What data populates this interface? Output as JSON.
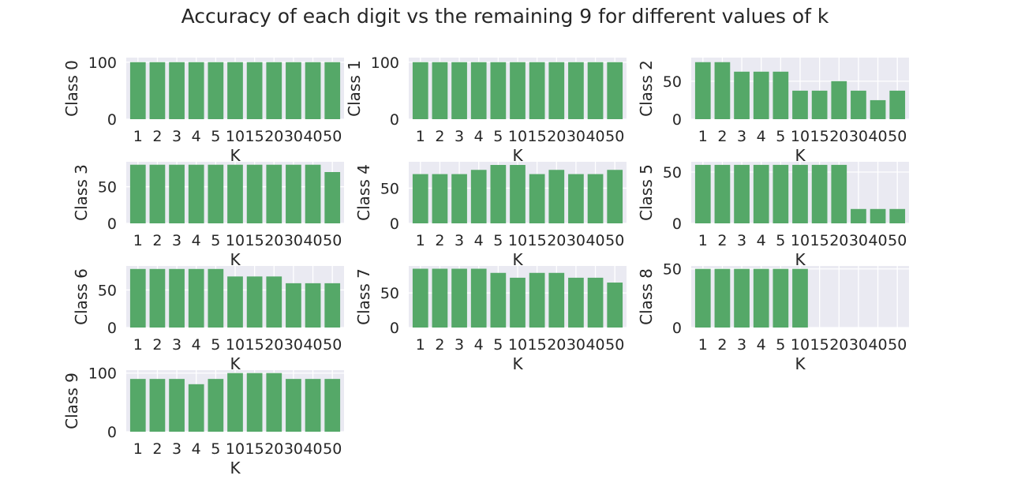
{
  "title": "Accuracy of each digit vs the remaining 9 for different values of k",
  "colors": {
    "bar": "#55a868",
    "plot_bg": "#eaeaf2",
    "grid": "#ffffff",
    "text": "#262626"
  },
  "chart_data": [
    {
      "type": "bar",
      "xlabel": "K",
      "ylabel": "Class 0",
      "categories": [
        "1",
        "2",
        "3",
        "4",
        "5",
        "10",
        "15",
        "20",
        "30",
        "40",
        "50"
      ],
      "values": [
        100,
        100,
        100,
        100,
        100,
        100,
        100,
        100,
        100,
        100,
        100
      ],
      "ylim": [
        0,
        108
      ],
      "yticks": [
        0,
        100
      ]
    },
    {
      "type": "bar",
      "xlabel": "K",
      "ylabel": "Class 1",
      "categories": [
        "1",
        "2",
        "3",
        "4",
        "5",
        "10",
        "15",
        "20",
        "30",
        "40",
        "50"
      ],
      "values": [
        100,
        100,
        100,
        100,
        100,
        100,
        100,
        100,
        100,
        100,
        100
      ],
      "ylim": [
        0,
        108
      ],
      "yticks": [
        0,
        100
      ]
    },
    {
      "type": "bar",
      "xlabel": "K",
      "ylabel": "Class 2",
      "categories": [
        "1",
        "2",
        "3",
        "4",
        "5",
        "10",
        "15",
        "20",
        "30",
        "40",
        "50"
      ],
      "values": [
        75,
        75,
        62.5,
        62.5,
        62.5,
        37.5,
        37.5,
        50,
        37.5,
        25,
        37.5
      ],
      "ylim": [
        0,
        81
      ],
      "yticks": [
        0,
        50
      ]
    },
    {
      "type": "bar",
      "xlabel": "K",
      "ylabel": "Class 3",
      "categories": [
        "1",
        "2",
        "3",
        "4",
        "5",
        "10",
        "15",
        "20",
        "30",
        "40",
        "50"
      ],
      "values": [
        80,
        80,
        80,
        80,
        80,
        80,
        80,
        80,
        80,
        80,
        70
      ],
      "ylim": [
        0,
        84
      ],
      "yticks": [
        0,
        50
      ]
    },
    {
      "type": "bar",
      "xlabel": "K",
      "ylabel": "Class 4",
      "categories": [
        "1",
        "2",
        "3",
        "4",
        "5",
        "10",
        "15",
        "20",
        "30",
        "40",
        "50"
      ],
      "values": [
        70,
        70,
        70,
        76,
        83,
        83,
        70,
        76,
        70,
        70,
        76
      ],
      "ylim": [
        0,
        87.5
      ],
      "yticks": [
        0,
        50
      ]
    },
    {
      "type": "bar",
      "xlabel": "K",
      "ylabel": "Class 5",
      "categories": [
        "1",
        "2",
        "3",
        "4",
        "5",
        "10",
        "15",
        "20",
        "30",
        "40",
        "50"
      ],
      "values": [
        57,
        57,
        57,
        57,
        57,
        57,
        57,
        57,
        14,
        14,
        14
      ],
      "ylim": [
        0,
        60
      ],
      "yticks": [
        0,
        50
      ]
    },
    {
      "type": "bar",
      "xlabel": "K",
      "ylabel": "Class 6",
      "categories": [
        "1",
        "2",
        "3",
        "4",
        "5",
        "10",
        "15",
        "20",
        "30",
        "40",
        "50"
      ],
      "values": [
        78,
        78,
        78,
        78,
        78,
        68,
        68,
        68,
        59,
        59,
        59
      ],
      "ylim": [
        0,
        82
      ],
      "yticks": [
        0,
        50
      ]
    },
    {
      "type": "bar",
      "xlabel": "K",
      "ylabel": "Class 7",
      "categories": [
        "1",
        "2",
        "3",
        "4",
        "5",
        "10",
        "15",
        "20",
        "30",
        "40",
        "50"
      ],
      "values": [
        85,
        85,
        85,
        85,
        79,
        72,
        79,
        79,
        72,
        72,
        65
      ],
      "ylim": [
        0,
        89
      ],
      "yticks": [
        0,
        50
      ]
    },
    {
      "type": "bar",
      "xlabel": "K",
      "ylabel": "Class 8",
      "categories": [
        "1",
        "2",
        "3",
        "4",
        "5",
        "10",
        "15",
        "20",
        "30",
        "40",
        "50"
      ],
      "values": [
        50,
        50,
        50,
        50,
        50,
        50,
        0,
        0,
        0,
        0,
        0
      ],
      "ylim": [
        0,
        52.5
      ],
      "yticks": [
        0,
        50
      ]
    },
    {
      "type": "bar",
      "xlabel": "K",
      "ylabel": "Class 9",
      "categories": [
        "1",
        "2",
        "3",
        "4",
        "5",
        "10",
        "15",
        "20",
        "30",
        "40",
        "50"
      ],
      "values": [
        90,
        90,
        90,
        81,
        90,
        100,
        100,
        100,
        90,
        90,
        90
      ],
      "ylim": [
        0,
        105
      ],
      "yticks": [
        0,
        100
      ]
    }
  ]
}
